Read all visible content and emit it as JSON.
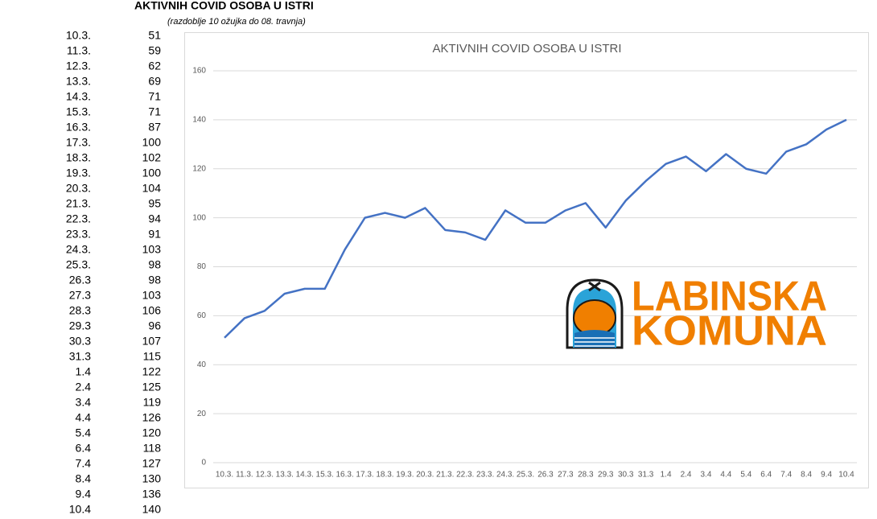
{
  "header": {
    "title": "AKTIVNIH COVID OSOBA U ISTRI",
    "subtitle": "(razdoblje 10 ožujka do 08. travnja)"
  },
  "chart_data": {
    "type": "line",
    "title": "AKTIVNIH COVID OSOBA U ISTRI",
    "categories": [
      "10.3.",
      "11.3.",
      "12.3.",
      "13.3.",
      "14.3.",
      "15.3.",
      "16.3.",
      "17.3.",
      "18.3.",
      "19.3.",
      "20.3.",
      "21.3.",
      "22.3.",
      "23.3.",
      "24.3.",
      "25.3.",
      "26.3",
      "27.3",
      "28.3",
      "29.3",
      "30.3",
      "31.3",
      "1.4",
      "2.4",
      "3.4",
      "4.4",
      "5.4",
      "6.4",
      "7.4",
      "8.4",
      "9.4",
      "10.4"
    ],
    "series": [
      {
        "color": "#4472c4",
        "values": [
          51,
          59,
          62,
          69,
          71,
          71,
          87,
          100,
          102,
          100,
          104,
          95,
          94,
          91,
          103,
          98,
          98,
          103,
          106,
          96,
          107,
          115,
          122,
          125,
          119,
          126,
          120,
          118,
          127,
          130,
          136,
          140
        ]
      }
    ],
    "ylim": [
      0,
      160
    ],
    "yticks": [
      0,
      20,
      40,
      60,
      80,
      100,
      120,
      140,
      160
    ],
    "grid": true
  },
  "logo": {
    "line1": "LABINSKA",
    "line2": "KOMUNA"
  }
}
